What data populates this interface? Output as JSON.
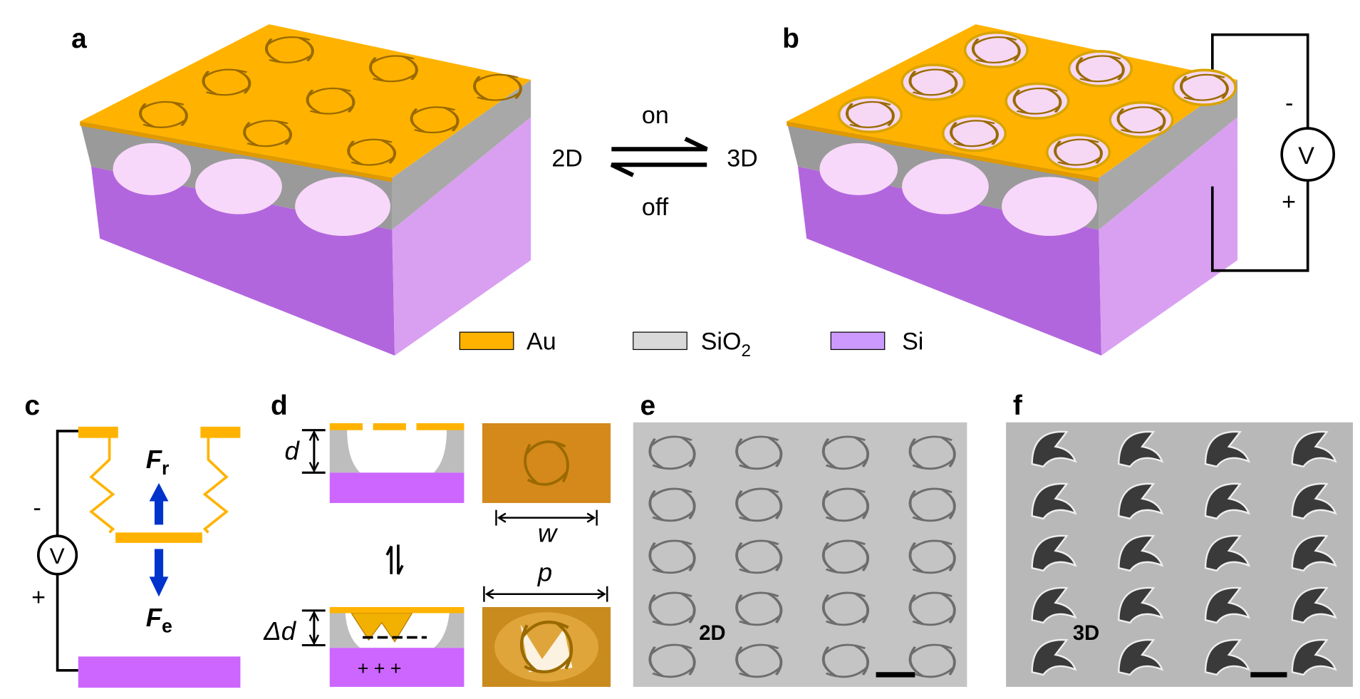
{
  "panels": {
    "a": "a",
    "b": "b",
    "c": "c",
    "d": "d",
    "e": "e",
    "f": "f"
  },
  "switch": {
    "left": "2D",
    "right": "3D",
    "on": "on",
    "off": "off"
  },
  "legend": [
    {
      "label": "Au",
      "color": "#FFB300"
    },
    {
      "label": "SiO",
      "sub": "2",
      "color": "#D9D9D9"
    },
    {
      "label": "Si",
      "color": "#CC99FF"
    }
  ],
  "circuit_b": {
    "voltmeter": "V",
    "minus": "-",
    "plus": "+"
  },
  "circuit_c": {
    "voltmeter": "V",
    "minus": "-",
    "plus": "+",
    "force_r": "F",
    "force_r_sub": "r",
    "force_e": "F",
    "force_e_sub": "e"
  },
  "panel_d": {
    "gap": "d",
    "width": "w",
    "period": "p",
    "delta_gap": "Δd",
    "charges": "+   +   +"
  },
  "sem": {
    "e_label": "2D",
    "f_label": "3D"
  },
  "colors": {
    "gold": "#FFB300",
    "silica": "#BDBDBD",
    "silicon_side": "#B266DD",
    "silicon_plate": "#CC66FF",
    "force_arrow": "#0033CC"
  }
}
